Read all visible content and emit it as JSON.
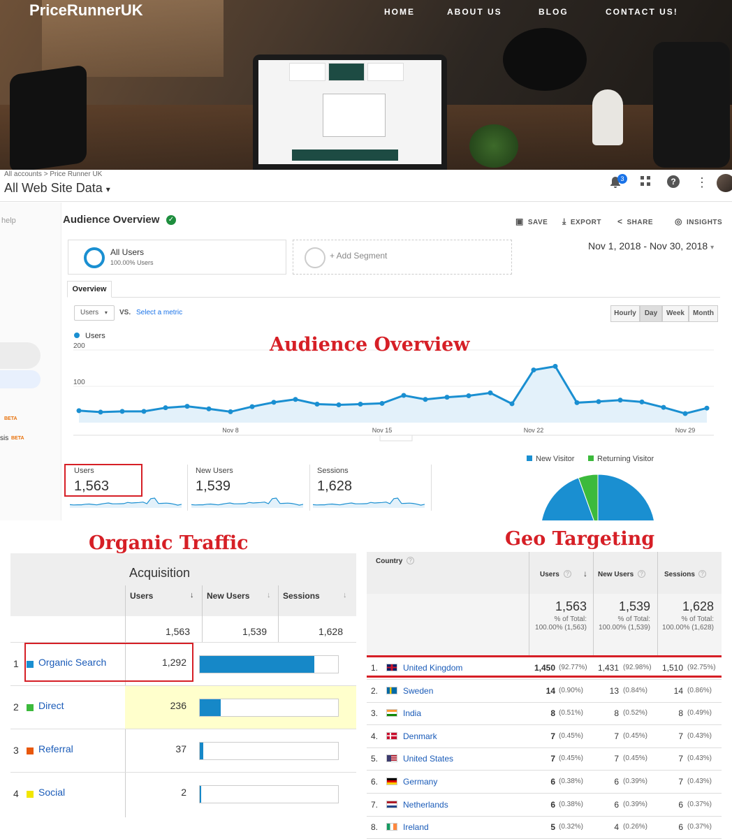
{
  "site": {
    "logo": "PriceRunnerUK",
    "nav": [
      "HOME",
      "ABOUT US",
      "BLOG",
      "CONTACT US!"
    ]
  },
  "ga": {
    "breadcrumb": "All accounts > Price Runner UK",
    "property": "All Web Site Data",
    "notif_count": "3",
    "sidebar_help": "help",
    "sidebar_beta": "BETA",
    "sidebar_frag": "sis",
    "page_title": "Audience Overview",
    "actions": [
      "SAVE",
      "EXPORT",
      "SHARE",
      "INSIGHTS"
    ],
    "segment": {
      "name": "All Users",
      "sub": "100.00% Users",
      "add": "+ Add Segment"
    },
    "date_range": "Nov 1, 2018 - Nov 30, 2018",
    "tab": "Overview",
    "metric_selector": "Users",
    "vs": "VS.",
    "select_metric": "Select a metric",
    "granularity": [
      "Hourly",
      "Day",
      "Week",
      "Month"
    ],
    "granularity_active": "Day",
    "chart_legend": "Users",
    "scorecards": [
      {
        "label": "Users",
        "value": "1,563"
      },
      {
        "label": "New Users",
        "value": "1,539"
      },
      {
        "label": "Sessions",
        "value": "1,628"
      }
    ],
    "pie": {
      "legend": [
        "New Visitor",
        "Returning Visitor"
      ],
      "colors": [
        "#1a8fd1",
        "#3cba3c"
      ],
      "values": [
        94.5,
        5.5
      ]
    }
  },
  "chart_data": {
    "type": "line",
    "series": [
      {
        "name": "Users",
        "values": [
          33,
          29,
          31,
          31,
          41,
          45,
          38,
          30,
          44,
          56,
          64,
          51,
          49,
          51,
          53,
          75,
          64,
          70,
          74,
          82,
          52,
          145,
          155,
          55,
          58,
          62,
          57,
          42,
          25,
          40
        ]
      }
    ],
    "x": [
      1,
      2,
      3,
      4,
      5,
      6,
      7,
      8,
      9,
      10,
      11,
      12,
      13,
      14,
      15,
      16,
      17,
      18,
      19,
      20,
      21,
      22,
      23,
      24,
      25,
      26,
      27,
      28,
      29,
      30
    ],
    "xtick_labels": [
      "Nov 8",
      "Nov 15",
      "Nov 22",
      "Nov 29"
    ],
    "xtick_positions": [
      8,
      15,
      22,
      29
    ],
    "ytick_labels": [
      "100",
      "200"
    ],
    "ylim": [
      0,
      200
    ],
    "grid": true
  },
  "annotations": {
    "audience": "Audience Overview",
    "organic": "Organic Traffic",
    "geo": "Geo Targeting"
  },
  "acquisition": {
    "header": "Acquisition",
    "columns": [
      "Users",
      "New Users",
      "Sessions"
    ],
    "totals": [
      "1,563",
      "1,539",
      "1,628"
    ],
    "rows": [
      {
        "rank": "1",
        "name": "Organic Search",
        "users": "1,292",
        "share": 0.826,
        "color": "#1a8fd1"
      },
      {
        "rank": "2",
        "name": "Direct",
        "users": "236",
        "share": 0.151,
        "color": "#3cba3c"
      },
      {
        "rank": "3",
        "name": "Referral",
        "users": "37",
        "share": 0.024,
        "color": "#e8580c"
      },
      {
        "rank": "4",
        "name": "Social",
        "users": "2",
        "share": 0.0013,
        "color": "#f2e600"
      }
    ]
  },
  "geo": {
    "columns": {
      "country": "Country",
      "users": "Users",
      "new_users": "New Users",
      "sessions": "Sessions"
    },
    "totals": {
      "users": "1,563",
      "users_pct": "% of Total:",
      "users_sub": "100.00% (1,563)",
      "new_users": "1,539",
      "new_users_pct": "% of Total:",
      "new_users_sub": "100.00% (1,539)",
      "sessions": "1,628",
      "sessions_pct": "% of Total:",
      "sessions_sub": "100.00% (1,628)"
    },
    "rows": [
      {
        "i": "1.",
        "country": "United Kingdom",
        "flag": "gb",
        "users": "1,450",
        "users_pct": "(92.77%)",
        "new": "1,431",
        "new_pct": "(92.98%)",
        "sess": "1,510",
        "sess_pct": "(92.75%)"
      },
      {
        "i": "2.",
        "country": "Sweden",
        "flag": "se",
        "users": "14",
        "users_pct": "(0.90%)",
        "new": "13",
        "new_pct": "(0.84%)",
        "sess": "14",
        "sess_pct": "(0.86%)"
      },
      {
        "i": "3.",
        "country": "India",
        "flag": "in",
        "users": "8",
        "users_pct": "(0.51%)",
        "new": "8",
        "new_pct": "(0.52%)",
        "sess": "8",
        "sess_pct": "(0.49%)"
      },
      {
        "i": "4.",
        "country": "Denmark",
        "flag": "dk",
        "users": "7",
        "users_pct": "(0.45%)",
        "new": "7",
        "new_pct": "(0.45%)",
        "sess": "7",
        "sess_pct": "(0.43%)"
      },
      {
        "i": "5.",
        "country": "United States",
        "flag": "us",
        "users": "7",
        "users_pct": "(0.45%)",
        "new": "7",
        "new_pct": "(0.45%)",
        "sess": "7",
        "sess_pct": "(0.43%)"
      },
      {
        "i": "6.",
        "country": "Germany",
        "flag": "de",
        "users": "6",
        "users_pct": "(0.38%)",
        "new": "6",
        "new_pct": "(0.39%)",
        "sess": "7",
        "sess_pct": "(0.43%)"
      },
      {
        "i": "7.",
        "country": "Netherlands",
        "flag": "nl",
        "users": "6",
        "users_pct": "(0.38%)",
        "new": "6",
        "new_pct": "(0.39%)",
        "sess": "6",
        "sess_pct": "(0.37%)"
      },
      {
        "i": "8.",
        "country": "Ireland",
        "flag": "ie",
        "users": "5",
        "users_pct": "(0.32%)",
        "new": "4",
        "new_pct": "(0.26%)",
        "sess": "6",
        "sess_pct": "(0.37%)"
      }
    ]
  }
}
